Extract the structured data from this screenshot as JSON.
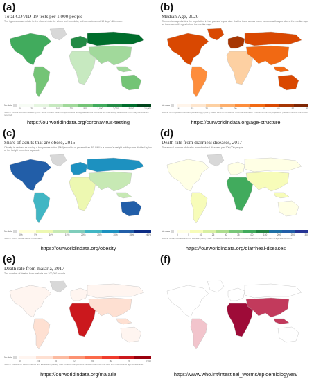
{
  "panels": [
    {
      "letter": "(a)",
      "title": "Total COVID-19 tests per 1,000 people",
      "subtitle": "The figures shown relate to the closest date for which we have data, with a maximum of 10 days' difference.",
      "nodata": "No data",
      "legend_ticks": [
        "0",
        "20",
        "50",
        "100",
        "200",
        "500",
        "1,000",
        "2,000",
        "5,000",
        "10,000"
      ],
      "legend_colors": [
        "#f7fcf5",
        "#e5f5e0",
        "#c7e9c0",
        "#a1d99b",
        "#74c476",
        "#41ab5d",
        "#238b45",
        "#006d2c",
        "#00441b"
      ],
      "source": "Source: Official sources collated by Our World in Data. Note: Comparisons of testing data across countries are affected by differences in the way the data are reported.",
      "url": "https://ourworldindata.org/coronavirus-testing",
      "colors": {
        "na": "#41ab5d",
        "sa": "#74c476",
        "eu": "#238b45",
        "af": "#c7e9c0",
        "as": "#a1d99b",
        "au": "#74c476",
        "gl": "#d8d8d8",
        "ru": "#006d2c"
      }
    },
    {
      "letter": "(b)",
      "title": "Median Age, 2020",
      "subtitle": "The median age divides the population in two parts of equal size: that is, there are as many persons with ages above the median age as there are with ages below the median age.",
      "nodata": "No data",
      "legend_ticks": [
        "14",
        "15",
        "20",
        "25",
        "30",
        "35",
        "40",
        "45",
        "50",
        "55"
      ],
      "legend_colors": [
        "#fff5eb",
        "#fee6ce",
        "#fdd0a2",
        "#fdae6b",
        "#fd8d3c",
        "#f16913",
        "#d94801",
        "#a63603",
        "#7f2704"
      ],
      "source": "Source: UN Population Division (Median Age) (2017). Note: 1950 to 2015 show historical estimates. From 2015 the UN projections (medium variant) are shown.",
      "url": "https://ourworldindata.org/age-structure",
      "colors": {
        "na": "#d94801",
        "sa": "#fd8d3c",
        "eu": "#a63603",
        "af": "#fdd0a2",
        "as": "#f16913",
        "au": "#d94801",
        "gl": "#d94801",
        "ru": "#d94801"
      }
    },
    {
      "letter": "(c)",
      "title": "Share of adults that are obese, 2016",
      "subtitle": "Obesity is defined as having a body-mass index (BMI) equal to or greater than 30. BMI is a person's weight in kilograms divided by his or her height in metres squared.",
      "nodata": "No data",
      "legend_ticks": [
        "0%",
        "5%",
        "10%",
        "15%",
        "20%",
        "25%",
        "30%",
        "35%",
        ">40%"
      ],
      "legend_colors": [
        "#ffffd9",
        "#edf8b1",
        "#c7e9b4",
        "#7fcdbb",
        "#41b6c4",
        "#1d91c0",
        "#225ea8",
        "#0c2c84"
      ],
      "source": "Source: WHO, Global Health Observatory",
      "url": "https://ourworldindata.org/obesity",
      "colors": {
        "na": "#225ea8",
        "sa": "#41b6c4",
        "eu": "#1d91c0",
        "af": "#edf8b1",
        "as": "#c7e9b4",
        "au": "#225ea8",
        "gl": "#d8d8d8",
        "ru": "#1d91c0"
      }
    },
    {
      "letter": "(d)",
      "title": "Death rate from diarrheal diseases, 2017",
      "subtitle": "The annual number of deaths from diarrheal diseases per 100,000 people.",
      "nodata": "No data",
      "legend_ticks": [
        "0",
        "5",
        "10",
        "25",
        "50",
        "75",
        "100",
        "150",
        "200",
        "250",
        "300"
      ],
      "legend_colors": [
        "#ffffe5",
        "#f7fcb9",
        "#d9f0a3",
        "#addd8e",
        "#78c679",
        "#41ab5d",
        "#238443",
        "#1d6fa5",
        "#225ea8",
        "#253494"
      ],
      "source": "Source: IHME, Global Burden of Disease (GBD). Note: To allow comparisons between countries and over time this metric is age-standardized.",
      "url": "https://ourworldindata.org/diarrheal-dseases",
      "colors": {
        "na": "#ffffe5",
        "sa": "#f7fcb9",
        "eu": "#ffffe5",
        "af": "#41ab5d",
        "as": "#f7fcb9",
        "au": "#ffffe5",
        "gl": "#d8d8d8",
        "ru": "#ffffe5"
      }
    },
    {
      "letter": "(e)",
      "title": "Death rate from malaria, 2017",
      "subtitle": "The number of deaths from malaria per 100,000 people.",
      "nodata": "No data",
      "legend_ticks": [
        "0",
        "2.5",
        "5",
        "10",
        "25",
        "50",
        "75",
        ">100"
      ],
      "legend_colors": [
        "#fff5f0",
        "#fee0d2",
        "#fcbba1",
        "#fc9272",
        "#fb6a4a",
        "#ef3b2c",
        "#cb181d",
        "#99000d"
      ],
      "source": "Source: Institute for Health Metrics and Evaluation (IHME). Note: To allow comparisons between countries and over time this metric is age-standardized.",
      "url": "https://ourworldindata.org/malaria",
      "colors": {
        "na": "#fff5f0",
        "sa": "#fee0d2",
        "eu": "#fff5f0",
        "af": "#cb181d",
        "as": "#fee0d2",
        "au": "#fff5f0",
        "gl": "#d8d8d8",
        "ru": "#fff5f0"
      }
    },
    {
      "letter": "(f)",
      "title": "",
      "subtitle": "",
      "nodata": "",
      "legend_ticks": [],
      "legend_colors": [],
      "source": "",
      "url": "https://www.who.int/intestinal_worms/epidemiology/en/",
      "colors": {
        "na": "#ffffff",
        "sa": "#f2c4cc",
        "eu": "#ffffff",
        "af": "#9e0b38",
        "as": "#c23a5c",
        "au": "#ffffff",
        "gl": "#ffffff",
        "ru": "#ffffff"
      }
    }
  ]
}
